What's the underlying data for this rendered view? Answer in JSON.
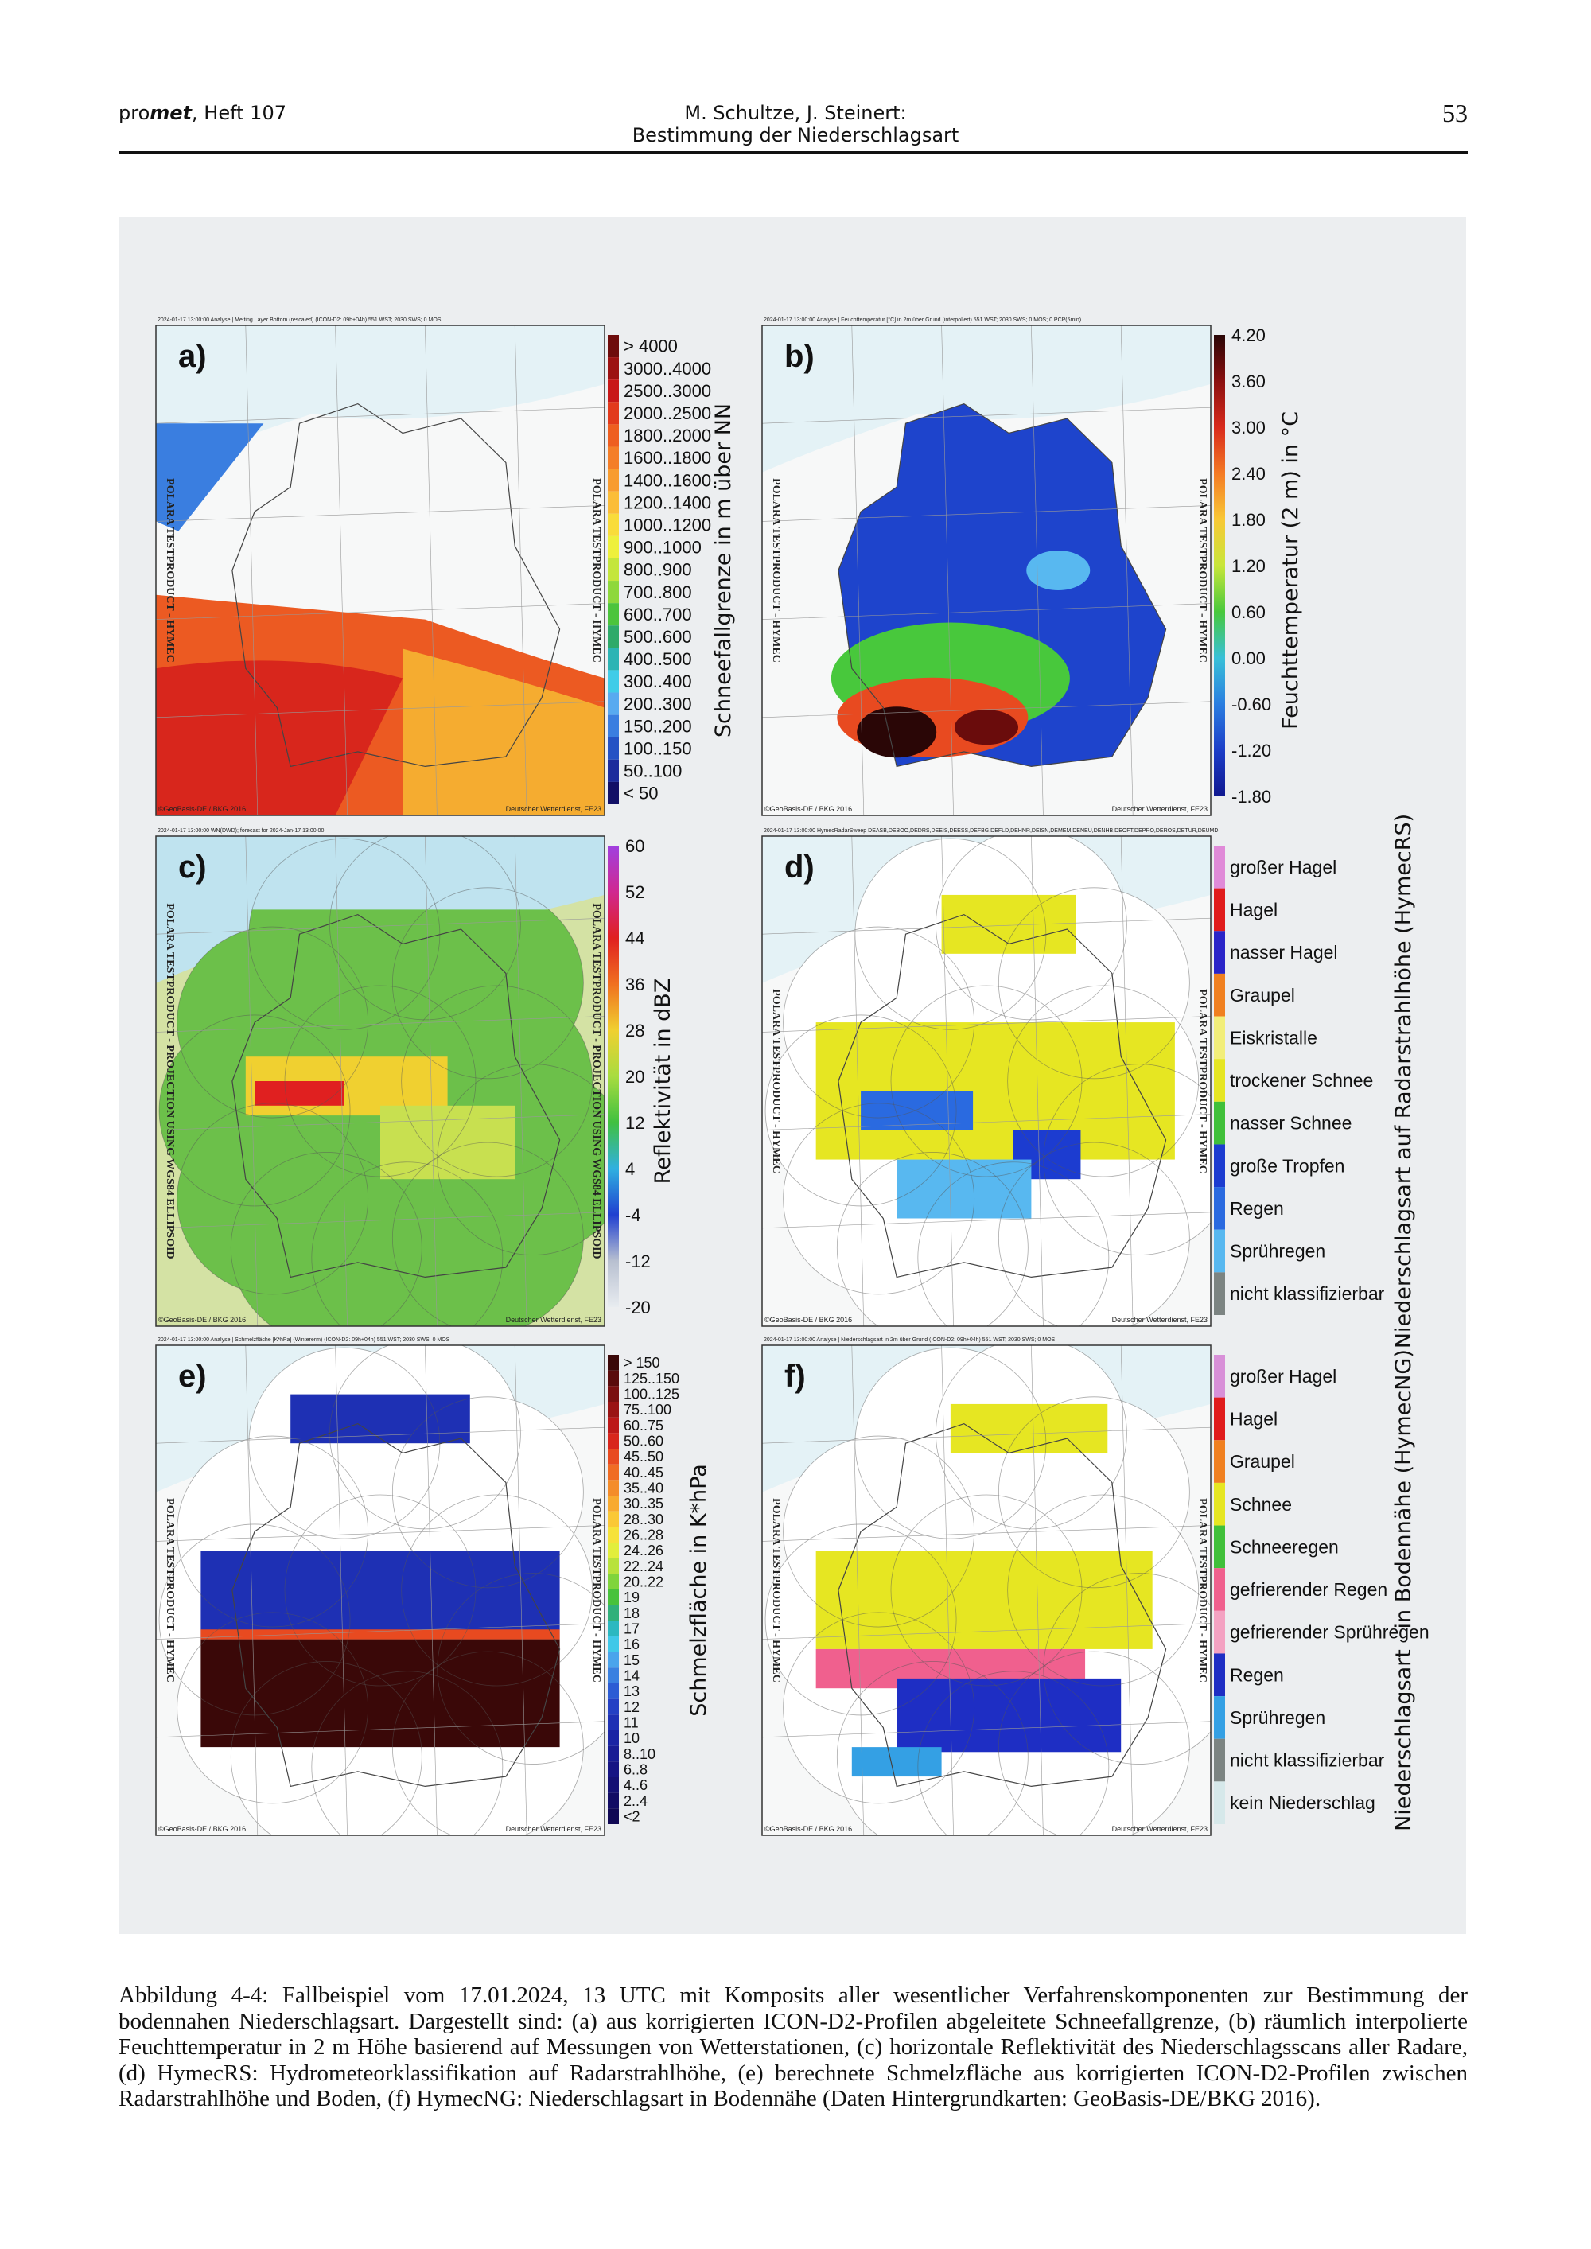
{
  "header": {
    "journal_prefix": "pro",
    "journal_emph": "met",
    "journal_issue": ", Heft 107",
    "authors": "M. Schultze, J. Steinert:",
    "section": "Bestimmung der Niederschlagsart",
    "page": "53"
  },
  "figure": {
    "panels": [
      {
        "label": "a)",
        "map_title": "2024-01-17 13:00:00 Analyse | Melting Layer Bottom (rescaled) (ICON-D2: 09h+04h) 551 WST; 2030 SWS; 0 MOS",
        "watermark": "POLARA TESTPRODUCT - HYMEC",
        "footer_left": "©GeoBasis-DE / BKG 2016",
        "footer_right": "Deutscher Wetterdienst, FE23",
        "legend_title": "Schneefallgrenze in m über NN",
        "legend": {
          "kind": "swatches",
          "items": [
            {
              "label": "> 4000",
              "color": "#6e0c0c"
            },
            {
              "label": "3000..4000",
              "color": "#9c1212"
            },
            {
              "label": "2500..3000",
              "color": "#c81818"
            },
            {
              "label": "2000..2500",
              "color": "#e23a1c"
            },
            {
              "label": "1800..2000",
              "color": "#ee5e20"
            },
            {
              "label": "1600..1800",
              "color": "#f47e28"
            },
            {
              "label": "1400..1600",
              "color": "#f89c30"
            },
            {
              "label": "1200..1400",
              "color": "#fbbd38"
            },
            {
              "label": "1000..1200",
              "color": "#f9dc3a"
            },
            {
              "label": "900..1000",
              "color": "#eef03c"
            },
            {
              "label": "800..900",
              "color": "#c4e63c"
            },
            {
              "label": "700..800",
              "color": "#8ed83c"
            },
            {
              "label": "600..700",
              "color": "#4cc43c"
            },
            {
              "label": "500..600",
              "color": "#2eaa6a"
            },
            {
              "label": "400..500",
              "color": "#2cb4b4"
            },
            {
              "label": "300..400",
              "color": "#40cce8"
            },
            {
              "label": "200..300",
              "color": "#58aaf0"
            },
            {
              "label": "150..200",
              "color": "#3a7ee0"
            },
            {
              "label": "100..150",
              "color": "#2452c4"
            },
            {
              "label": "50..100",
              "color": "#1c2c9c"
            },
            {
              "label": "< 50",
              "color": "#121066"
            }
          ]
        }
      },
      {
        "label": "b)",
        "map_title": "2024-01-17 13:00:00 Analyse | Feuchttemperatur [°C] in 2m über Grund (interpoliert) 551 WST; 2030 SWS; 0 MOS; 0 PCP(5min)",
        "watermark": "POLARA TESTPRODUCT - HYMEC",
        "footer_left": "©GeoBasis-DE / BKG 2016",
        "footer_right": "Deutscher Wetterdienst, FE23",
        "legend_title": "Feuchttemperatur (2 m) in °C",
        "legend": {
          "kind": "colorbar",
          "labels": [
            "4.20",
            "3.60",
            "3.00",
            "2.40",
            "1.80",
            "1.20",
            "0.60",
            "0.00",
            "-0.60",
            "-1.20",
            "-1.80"
          ],
          "colors": [
            "#2a0606",
            "#8a1010",
            "#d82a1c",
            "#f47a24",
            "#f8c836",
            "#c8e63a",
            "#48c83c",
            "#38c0d8",
            "#2a7ee0",
            "#1c3ec8",
            "#101890"
          ]
        }
      },
      {
        "label": "c)",
        "map_title": "2024-01-17 13:00:00 WN(DWD); forecast for 2024-Jan-17 13:00:00",
        "watermark": "POLARA TESTPRODUCT - PROJECTION USING WGS84 ELLIPSOID",
        "footer_left": "©GeoBasis-DE / BKG 2016",
        "footer_right": "Deutscher Wetterdienst, FE23",
        "legend_title": "Reflektivität in dBZ",
        "legend": {
          "kind": "colorbar",
          "labels": [
            "60",
            "52",
            "44",
            "36",
            "28",
            "20",
            "12",
            "4",
            "-4",
            "-12",
            "-20"
          ],
          "colors": [
            "#a040e0",
            "#d02890",
            "#e02020",
            "#f07020",
            "#f0d030",
            "#a8dc40",
            "#40c040",
            "#30b0e0",
            "#2040d0",
            "#b8c0d0",
            "#e8ecf0"
          ]
        }
      },
      {
        "label": "d)",
        "map_title": "2024-01-17 13:00:00 HymecRadarSweep DEASB,DEBOO,DEDRS,DEEIS,DEESS,DEFBG,DEFLD,DEHNR,DEISN,DEMEM,DENEU,DENHB,DEOFT,DEPRO,DEROS,DETUR,DEUMD",
        "watermark": "POLARA TESTPRODUCT - HYMEC",
        "footer_left": "©GeoBasis-DE / BKG 2016",
        "footer_right": "Deutscher Wetterdienst, FE23",
        "legend_title": "Niederschlagsart auf Radarstrahlhöhe (HymecRS)",
        "legend": {
          "kind": "swatches",
          "items": [
            {
              "label": "großer Hagel",
              "color": "#e08ad8"
            },
            {
              "label": "Hagel",
              "color": "#e01c1c"
            },
            {
              "label": "nasser Hagel",
              "color": "#2a24c8"
            },
            {
              "label": "Graupel",
              "color": "#f08020"
            },
            {
              "label": "Eiskristalle",
              "color": "#f2ee7a"
            },
            {
              "label": "trockener Schnee",
              "color": "#e6e622"
            },
            {
              "label": "nasser Schnee",
              "color": "#40c03a"
            },
            {
              "label": "große Tropfen",
              "color": "#1c3cd0"
            },
            {
              "label": "Regen",
              "color": "#2a6ae0"
            },
            {
              "label": "Sprühregen",
              "color": "#58b8f0"
            },
            {
              "label": "nicht klassifizierbar",
              "color": "#7c8482"
            }
          ]
        }
      },
      {
        "label": "e)",
        "map_title": "2024-01-17 13:00:00 Analyse | Schmelzfläche [K*hPa] (Wintererm) (ICON-D2: 09h+04h) 551 WST; 2030 SWS; 0 MOS",
        "watermark": "POLARA TESTPRODUCT - HYMEC",
        "footer_left": "©GeoBasis-DE / BKG 2016",
        "footer_right": "Deutscher Wetterdienst, FE23",
        "legend_title": "Schmelzfläche in K*hPa",
        "legend": {
          "kind": "swatches",
          "items": [
            {
              "label": "> 150",
              "color": "#3a0808"
            },
            {
              "label": "125..150",
              "color": "#5a0c0c"
            },
            {
              "label": "100..125",
              "color": "#7a1010"
            },
            {
              "label": "75..100",
              "color": "#9a1414"
            },
            {
              "label": "60..75",
              "color": "#bc1818"
            },
            {
              "label": "50..60",
              "color": "#d8261c"
            },
            {
              "label": "45..50",
              "color": "#e84a20"
            },
            {
              "label": "40..45",
              "color": "#f06c24"
            },
            {
              "label": "35..40",
              "color": "#f48c2a"
            },
            {
              "label": "30..35",
              "color": "#f8aa30"
            },
            {
              "label": "28..30",
              "color": "#fac836"
            },
            {
              "label": "26..28",
              "color": "#f6e23a"
            },
            {
              "label": "24..26",
              "color": "#e2ee3c"
            },
            {
              "label": "22..24",
              "color": "#b8e23c"
            },
            {
              "label": "20..22",
              "color": "#80d43c"
            },
            {
              "label": "19",
              "color": "#48c23c"
            },
            {
              "label": "18",
              "color": "#30b07a"
            },
            {
              "label": "17",
              "color": "#2cb8c0"
            },
            {
              "label": "16",
              "color": "#40c8e8"
            },
            {
              "label": "15",
              "color": "#4aa4ec"
            },
            {
              "label": "14",
              "color": "#3a80e0"
            },
            {
              "label": "13",
              "color": "#2c5cd4"
            },
            {
              "label": "12",
              "color": "#2440c4"
            },
            {
              "label": "11",
              "color": "#1e30b4"
            },
            {
              "label": "10",
              "color": "#1a24a4"
            },
            {
              "label": "8..10",
              "color": "#181c94"
            },
            {
              "label": "6..8",
              "color": "#161484"
            },
            {
              "label": "4..6",
              "color": "#141074"
            },
            {
              "label": "2..4",
              "color": "#120c64"
            },
            {
              "label": "<2",
              "color": "#100854"
            }
          ]
        }
      },
      {
        "label": "f)",
        "map_title": "2024-01-17 13:00:00 Analyse | Niederschlagsart in 2m über Grund (ICON-D2: 09h+04h) 551 WST; 2030 SWS; 0 MOS",
        "watermark": "POLARA TESTPRODUCT - HYMEC",
        "footer_left": "©GeoBasis-DE / BKG 2016",
        "footer_right": "Deutscher Wetterdienst, FE23",
        "legend_title": "Niederschlagsart   in Bodennähe (HymecNG)",
        "legend": {
          "kind": "swatches",
          "items": [
            {
              "label": "großer Hagel",
              "color": "#d890d8"
            },
            {
              "label": "Hagel",
              "color": "#e01c1c"
            },
            {
              "label": "Graupel",
              "color": "#f08020"
            },
            {
              "label": "Schnee",
              "color": "#e6e622"
            },
            {
              "label": "Schneeregen",
              "color": "#40c03a"
            },
            {
              "label": "gefrierender Regen",
              "color": "#f0608e"
            },
            {
              "label": "gefrierender Sprühregen",
              "color": "#f4a2c2"
            },
            {
              "label": "Regen",
              "color": "#1e2ec4"
            },
            {
              "label": "Sprühregen",
              "color": "#34a0e4"
            },
            {
              "label": "nicht klassifizierbar",
              "color": "#7c8482"
            },
            {
              "label": "kein Niederschlag",
              "color": "#d6e8ea"
            }
          ]
        }
      }
    ]
  },
  "caption": "Abbildung 4-4: Fallbeispiel vom 17.01.2024, 13 UTC mit Komposits aller wesentlicher Verfahrenskomponenten zur Bestimmung der bodennahen Niederschlagsart. Dargestellt sind: (a) aus korrigierten ICON-D2-Profilen abgeleitete Schneefallgrenze, (b) räumlich interpolierte Feuchttemperatur in 2 m Höhe basierend auf Messungen von Wetterstationen, (c) horizontale Reflektivität des Niederschlagsscans aller Radare, (d) HymecRS: Hydrometeorklassifikation auf Radarstrahlhöhe, (e) berechnete Schmelzfläche aus korrigierten ICON-D2-Profilen zwischen Radarstrahlhöhe und Boden, (f) HymecNG: Niederschlagsart in Bodennähe (Daten Hintergrundkarten: GeoBasis-DE/BKG 2016)."
}
